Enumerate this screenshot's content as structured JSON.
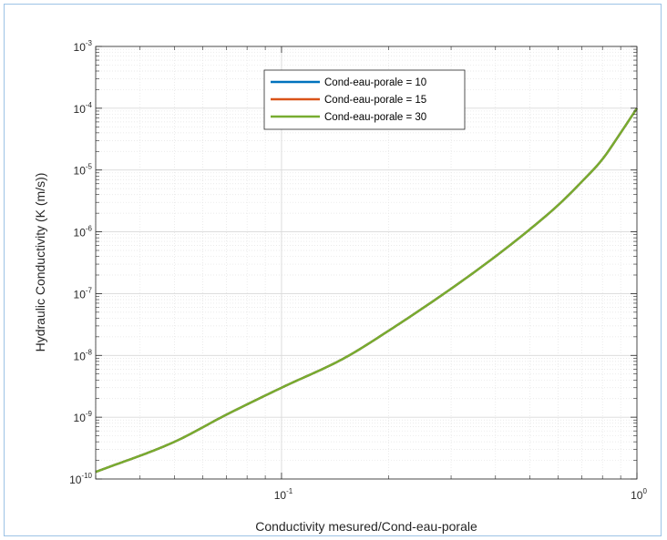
{
  "chart_data": {
    "type": "line",
    "title": "",
    "xlabel": "Conductivity mesured/Cond-eau-porale",
    "ylabel": "Hydraulic Conductivity (K (m/s))",
    "xscale": "log",
    "yscale": "log",
    "xlim": [
      0.03,
      1
    ],
    "ylim": [
      1e-10,
      0.001
    ],
    "grid": true,
    "minor_grid": true,
    "legend_position": "top-center",
    "x_ticks": [
      {
        "value": 0.1,
        "base": "10",
        "exp": "-1"
      },
      {
        "value": 1,
        "base": "10",
        "exp": "0"
      }
    ],
    "y_ticks": [
      {
        "value": 1e-10,
        "base": "10",
        "exp": "-10"
      },
      {
        "value": 1e-09,
        "base": "10",
        "exp": "-9"
      },
      {
        "value": 1e-08,
        "base": "10",
        "exp": "-8"
      },
      {
        "value": 1e-07,
        "base": "10",
        "exp": "-7"
      },
      {
        "value": 1e-06,
        "base": "10",
        "exp": "-6"
      },
      {
        "value": 1e-05,
        "base": "10",
        "exp": "-5"
      },
      {
        "value": 0.0001,
        "base": "10",
        "exp": "-4"
      },
      {
        "value": 0.001,
        "base": "10",
        "exp": "-3"
      }
    ],
    "series": [
      {
        "name": "Cond-eau-porale = 10",
        "color": "#0072bd",
        "x": [
          0.03,
          0.05,
          0.07,
          0.1,
          0.15,
          0.2,
          0.3,
          0.4,
          0.5,
          0.6,
          0.7,
          0.8,
          0.9,
          1.0
        ],
        "y": [
          1.3e-10,
          4e-10,
          1.1e-09,
          3e-09,
          9e-09,
          2.5e-08,
          1.2e-07,
          4e-07,
          1.1e-06,
          2.7e-06,
          6.5e-06,
          1.5e-05,
          4e-05,
          0.0001
        ]
      },
      {
        "name": "Cond-eau-porale = 15",
        "color": "#d95319",
        "x": [
          0.03,
          0.05,
          0.07,
          0.1,
          0.15,
          0.2,
          0.3,
          0.4,
          0.5,
          0.6,
          0.7,
          0.8,
          0.9,
          1.0
        ],
        "y": [
          1.3e-10,
          4e-10,
          1.1e-09,
          3e-09,
          9e-09,
          2.5e-08,
          1.2e-07,
          4e-07,
          1.1e-06,
          2.7e-06,
          6.5e-06,
          1.5e-05,
          4e-05,
          0.0001
        ]
      },
      {
        "name": "Cond-eau-porale = 30",
        "color": "#77ac30",
        "x": [
          0.03,
          0.05,
          0.07,
          0.1,
          0.15,
          0.2,
          0.3,
          0.4,
          0.5,
          0.6,
          0.7,
          0.8,
          0.9,
          1.0
        ],
        "y": [
          1.3e-10,
          4e-10,
          1.1e-09,
          3e-09,
          9e-09,
          2.5e-08,
          1.2e-07,
          4e-07,
          1.1e-06,
          2.7e-06,
          6.5e-06,
          1.5e-05,
          4e-05,
          0.0001
        ]
      }
    ]
  }
}
